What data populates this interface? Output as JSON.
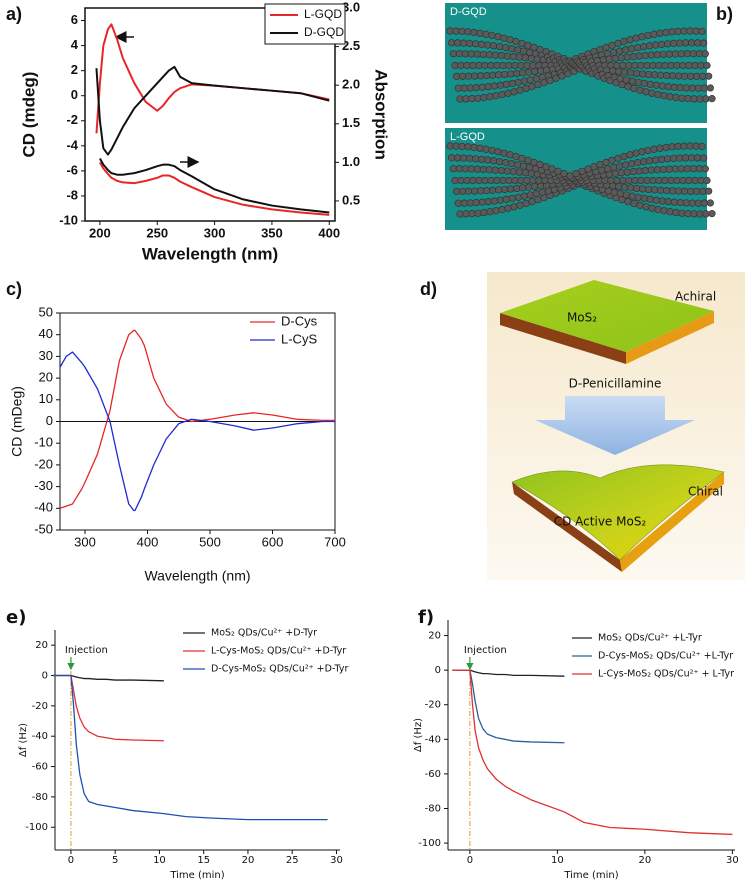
{
  "chart_data": [
    {
      "type": "line",
      "panel": "a)",
      "xlabel": "Wavelength (nm)",
      "ylabel": "CD (mdeg)",
      "y2label": "Absorption",
      "x": [
        197,
        200,
        203,
        207,
        210,
        215,
        220,
        230,
        240,
        250,
        255,
        260,
        265,
        270,
        280,
        300,
        325,
        350,
        375,
        400
      ],
      "xlim": [
        187,
        405
      ],
      "xticks": [
        200,
        250,
        300,
        350,
        400
      ],
      "ylim": [
        -10,
        7
      ],
      "yticks": [
        -10,
        -8,
        -6,
        -4,
        -2,
        0,
        2,
        4,
        6
      ],
      "y2lim": [
        0.24,
        3.0
      ],
      "y2ticks": [
        0.5,
        {
          "value": 1,
          "label": "1.0"
        },
        1.5,
        {
          "value": 2,
          "label": "2.0"
        },
        2.5,
        {
          "value": 3,
          "label": "3.0"
        }
      ],
      "series": [
        {
          "name": "L-GQD",
          "color": "#e8262a",
          "values": [
            -3,
            1,
            4,
            5.3,
            5.7,
            4.5,
            3,
            1,
            -0.5,
            -1.2,
            -0.8,
            -0.2,
            0.3,
            0.6,
            0.9,
            0.8,
            0.6,
            0.4,
            0.2,
            -0.3
          ]
        },
        {
          "name": "D-GQD",
          "color": "#111111",
          "values": [
            2.2,
            -2,
            -4.2,
            -4.7,
            -4.3,
            -3.4,
            -2.5,
            -1,
            0,
            1,
            1.5,
            2,
            2.3,
            1.5,
            1,
            0.8,
            0.6,
            0.4,
            0.2,
            -0.4
          ]
        },
        {
          "color": "#e8262a",
          "axis": "y2",
          "values": [
            null,
            1.0,
            0.92,
            0.85,
            0.8,
            0.76,
            0.74,
            0.73,
            0.76,
            0.8,
            0.83,
            0.83,
            0.8,
            0.75,
            0.68,
            0.55,
            0.45,
            0.39,
            0.35,
            0.32
          ]
        },
        {
          "color": "#111111",
          "axis": "y2",
          "values": [
            null,
            1.05,
            0.97,
            0.9,
            0.86,
            0.84,
            0.84,
            0.86,
            0.9,
            0.95,
            0.97,
            0.97,
            0.95,
            0.9,
            0.82,
            0.65,
            0.52,
            0.44,
            0.39,
            0.35
          ]
        }
      ]
    },
    {
      "type": "line",
      "panel": "c)",
      "xlabel": "Wavelength (nm)",
      "ylabel": "CD (mDeg)",
      "x": [
        260,
        270,
        280,
        295,
        300,
        320,
        340,
        355,
        370,
        378,
        380,
        390,
        395,
        410,
        430,
        450,
        470,
        500,
        540,
        570,
        600,
        640,
        680,
        700
      ],
      "xlim": [
        260,
        700
      ],
      "xticks": [
        300,
        400,
        500,
        600,
        700
      ],
      "ylim": [
        -50,
        50
      ],
      "yticks": [
        -50,
        -40,
        -30,
        -20,
        -10,
        0,
        10,
        20,
        30,
        40,
        50
      ],
      "series": [
        {
          "name": "D-Cys",
          "color": "#e8262a",
          "values": [
            -40,
            -39,
            -38,
            -31,
            -28,
            -15,
            5,
            28,
            40,
            42,
            42,
            38,
            35,
            20,
            8,
            2,
            0,
            1,
            3,
            4,
            3,
            1,
            0.5,
            0.5
          ]
        },
        {
          "name": "L-CyS",
          "color": "#1f2bd0",
          "values": [
            25,
            30,
            32,
            27,
            25,
            15,
            0,
            -20,
            -38,
            -41,
            -41,
            -35,
            -31,
            -20,
            -8,
            -1,
            1,
            0,
            -2,
            -4,
            -3,
            -1,
            0,
            0
          ]
        }
      ]
    },
    {
      "type": "line",
      "panel": "e)",
      "xlabel": "Time (min)",
      "ylabel": "Δf (Hz)",
      "annotation": {
        "text": "Injection",
        "x": 0
      },
      "x": [
        -2,
        -1,
        0,
        0.3,
        0.6,
        1,
        1.5,
        2,
        3,
        4,
        5,
        7,
        10.5,
        13,
        16,
        20,
        25,
        29
      ],
      "xlim": [
        -1.8,
        30.4
      ],
      "xticks": [
        0,
        5,
        10,
        15,
        20,
        25,
        30
      ],
      "ylim": [
        -115,
        30
      ],
      "yticks": [
        -100,
        -80,
        -60,
        -40,
        -20,
        0,
        20
      ],
      "series": [
        {
          "name": "MoS₂ QDs/Cu²⁺ +D-Tyr",
          "color": "#222222",
          "values": [
            0,
            0,
            0,
            -0.5,
            -1,
            -1.5,
            -2,
            -2,
            -2.5,
            -2.5,
            -3,
            -3,
            -3.5,
            null,
            null,
            null,
            null,
            null
          ]
        },
        {
          "name": "L-Cys-MoS₂ QDs/Cu²⁺ +D-Tyr",
          "color": "#e03030",
          "values": [
            0,
            0,
            0,
            -10,
            -20,
            -28,
            -34,
            -37,
            -40,
            -41,
            -42,
            -42.5,
            -43,
            null,
            null,
            null,
            null,
            null
          ]
        },
        {
          "name": "D-Cys-MoS₂ QDs/Cu²⁺ +D-Tyr",
          "color": "#2050b0",
          "values": [
            0,
            0,
            0,
            -20,
            -45,
            -65,
            -78,
            -83,
            -85,
            -86,
            -87,
            -89,
            -91,
            -93,
            -94,
            -95,
            -95,
            -95
          ]
        }
      ]
    },
    {
      "type": "line",
      "panel": "f)",
      "xlabel": "Time (min)",
      "ylabel": "Δf (Hz)",
      "annotation": {
        "text": "Injection",
        "x": 0
      },
      "x": [
        -2,
        -1,
        0,
        0.3,
        0.6,
        1,
        1.5,
        2,
        3,
        4,
        5,
        7,
        10.8,
        13,
        16,
        20,
        25,
        30
      ],
      "xlim": [
        -2.5,
        30.3
      ],
      "xticks": [
        0,
        10,
        20,
        30
      ],
      "ylim": [
        -104,
        29
      ],
      "yticks": [
        -100,
        -80,
        -60,
        -40,
        -20,
        0,
        20
      ],
      "series": [
        {
          "name": "MoS₂ QDs/Cu²⁺ +L-Tyr",
          "color": "#222222",
          "values": [
            0,
            0,
            0,
            -0.5,
            -1,
            -1.5,
            -2,
            -2,
            -2.5,
            -2.5,
            -3,
            -3,
            -3.5,
            null,
            null,
            null,
            null,
            null
          ]
        },
        {
          "name": "D-Cys-MoS₂ QDs/Cu²⁺ +L-Tyr",
          "color": "#2b5f9e",
          "values": [
            0,
            0,
            0,
            -8,
            -18,
            -28,
            -34,
            -37,
            -39,
            -40,
            -41,
            -41.5,
            -42,
            null,
            null,
            null,
            null,
            null
          ]
        },
        {
          "name": "L-Cys-MoS₂ QDs/Cu²⁺ + L-Tyr",
          "color": "#e03030",
          "values": [
            0,
            0,
            0,
            -20,
            -35,
            -45,
            -52,
            -57,
            -63,
            -67,
            -70,
            -75,
            -82,
            -88,
            -91,
            -92,
            -94,
            -95
          ]
        }
      ]
    }
  ],
  "diagrams": {
    "b": {
      "panel": "b)",
      "labels": [
        "D-GQD",
        "L-GQD"
      ]
    },
    "d": {
      "panel": "d)",
      "top_label": "Achiral",
      "slab_label": "MoS₂",
      "arrow_label": "D-Penicillamine",
      "bottom_label": "Chiral",
      "sheet_label": "CD Active MoS₂"
    }
  }
}
